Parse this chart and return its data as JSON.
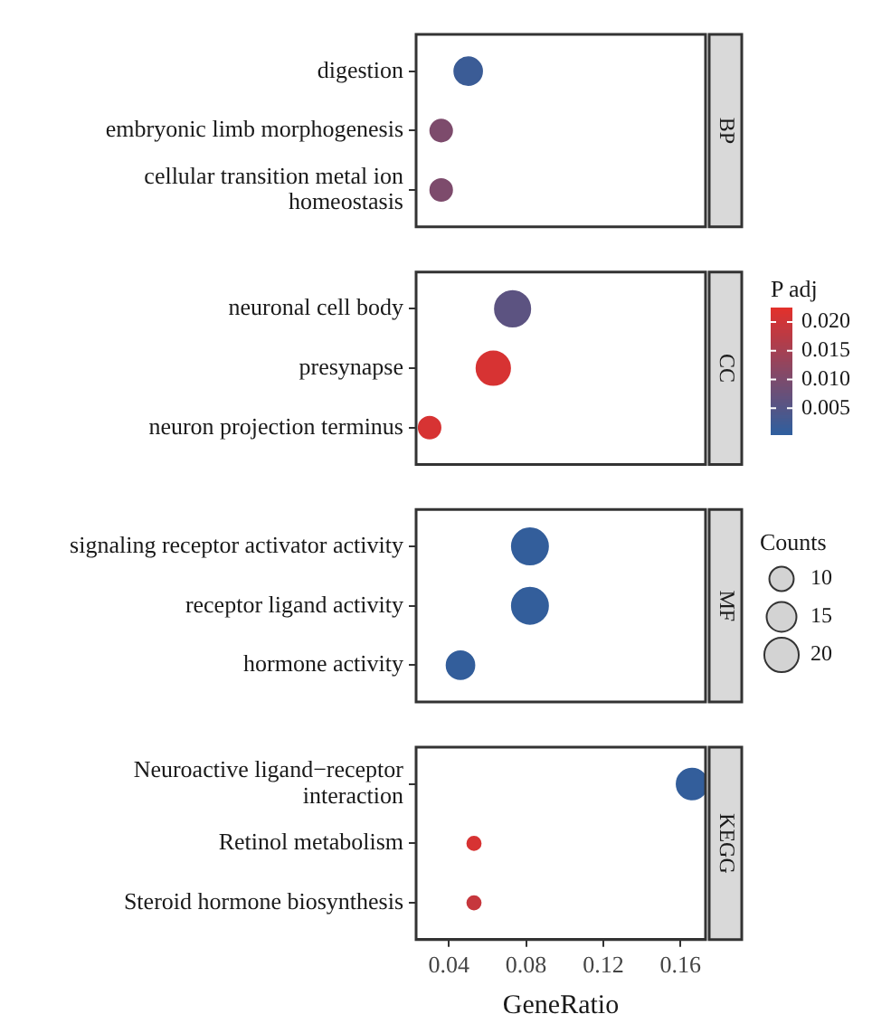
{
  "chart_data": {
    "type": "bubble",
    "orientation": "horizontal",
    "categories": [
      "digestion",
      "embryonic limb morphogenesis",
      "cellular transition metal ion homeostasis",
      null,
      "neuronal cell body",
      "presynapse",
      "neuron projection terminus",
      null,
      "signaling receptor activator activity",
      "receptor ligand activity",
      "hormone activity",
      null,
      "Neuroactive ligand−receptor interaction",
      "Retinol metabolism",
      "Steroid hormone biosynthesis"
    ],
    "values": [
      0.05,
      0.036,
      0.036,
      null,
      0.073,
      0.063,
      0.03,
      null,
      0.082,
      0.082,
      0.046,
      null,
      0.166,
      0.053,
      0.053
    ],
    "sizes": [
      13,
      8,
      8,
      null,
      21,
      19,
      8,
      null,
      22,
      22,
      13,
      null,
      16,
      3,
      3
    ],
    "cvalues": [
      0.002,
      0.01,
      0.01,
      null,
      0.006,
      0.021,
      0.021,
      null,
      0.001,
      0.001,
      0.001,
      null,
      0.001,
      0.021,
      0.019
    ],
    "annotations": [
      "BP",
      "CC",
      "MF",
      "KEGG"
    ],
    "xlim": [
      0.023,
      0.173
    ],
    "xticks": [
      {
        "value": 0.04,
        "label": "0.04"
      },
      {
        "value": 0.08,
        "label": "0.08"
      },
      {
        "value": 0.12,
        "label": "0.12"
      },
      {
        "value": 0.16,
        "label": "0.16"
      }
    ],
    "xlabel": "GeneRatio",
    "grid": false,
    "clabel": "P adj",
    "clim": [
      0.0005,
      0.0225
    ],
    "cticks": [
      {
        "value": 0.005,
        "label": "0.005"
      },
      {
        "value": 0.01,
        "label": "0.010"
      },
      {
        "value": 0.015,
        "label": "0.015"
      },
      {
        "value": 0.02,
        "label": "0.020"
      }
    ],
    "legend_title": "Counts",
    "size_legend": [
      10,
      15,
      20
    ]
  }
}
